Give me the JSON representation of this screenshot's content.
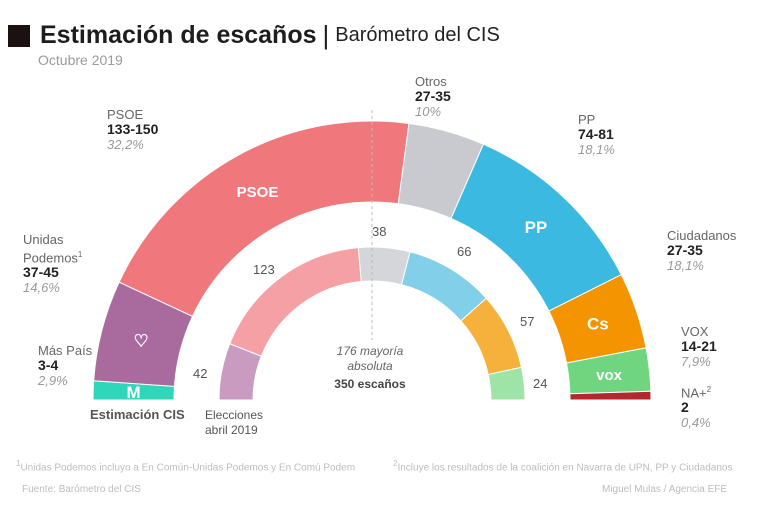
{
  "header": {
    "title": "Estimación de escaños",
    "separator": "|",
    "subtitle": "Barómetro del CIS",
    "date": "Octubre 2019"
  },
  "chart_data": {
    "type": "hemicycle",
    "total_seats_label": "350 escaños",
    "majority_label_1": "176 mayoría",
    "majority_label_2": "absoluta",
    "outer_ring_label": "Estimación CIS",
    "inner_ring_label_1": "Elecciones",
    "inner_ring_label_2": "abril 2019",
    "estimate": [
      {
        "party": "Más País",
        "range": "3-4",
        "low": 3,
        "high": 4,
        "pct": "2,9%",
        "color": "#2fd6b9",
        "logo": "M"
      },
      {
        "party": "Unidas Podemos",
        "sup": "1",
        "range": "37-45",
        "low": 37,
        "high": 45,
        "pct": "14,6%",
        "color": "#a96a9e",
        "logo": "♡"
      },
      {
        "party": "PSOE",
        "range": "133-150",
        "low": 133,
        "high": 150,
        "pct": "32,2%",
        "color": "#f0777c",
        "logo": "PSOE"
      },
      {
        "party": "Otros",
        "range": "27-35",
        "low": 27,
        "high": 35,
        "pct": "10%",
        "color": "#c9cacf",
        "logo": ""
      },
      {
        "party": "PP",
        "range": "74-81",
        "low": 74,
        "high": 81,
        "pct": "18,1%",
        "color": "#3cb9e1",
        "logo": "PP"
      },
      {
        "party": "Ciudadanos",
        "range": "27-35",
        "low": 27,
        "high": 35,
        "pct": "18,1%",
        "color": "#f39400",
        "logo": "Cs"
      },
      {
        "party": "VOX",
        "range": "14-21",
        "low": 14,
        "high": 21,
        "pct": "7,9%",
        "color": "#6fd57f",
        "logo": "vox"
      },
      {
        "party": "NA+",
        "sup": "2",
        "range": "2",
        "low": 2,
        "high": 2,
        "pct": "0,4%",
        "color": "#b3282c",
        "logo": ""
      }
    ],
    "april_2019": [
      {
        "party": "Unidas Podemos",
        "seats": 42,
        "color": "#c99bc1"
      },
      {
        "party": "PSOE",
        "seats": 123,
        "color": "#f5a0a5"
      },
      {
        "party": "Otros",
        "seats": 38,
        "color": "#d5d6da"
      },
      {
        "party": "PP",
        "seats": 66,
        "color": "#81cfe9"
      },
      {
        "party": "Ciudadanos",
        "seats": 57,
        "color": "#f6b13c"
      },
      {
        "party": "VOX",
        "seats": 24,
        "color": "#9ee4a6"
      }
    ]
  },
  "footer": {
    "note1": "Unidas Podemos incluyo a En Común-Unidas Podemos y En Comú Podem",
    "note1_sup": "1",
    "note2": "Incluye los resultados de la coalición en Navarra de UPN, PP y Ciudadanos",
    "note2_sup": "2",
    "source": "Fuente: Barómetro del CIS",
    "credit": "Miguel Mulas / Agencia EFE"
  }
}
